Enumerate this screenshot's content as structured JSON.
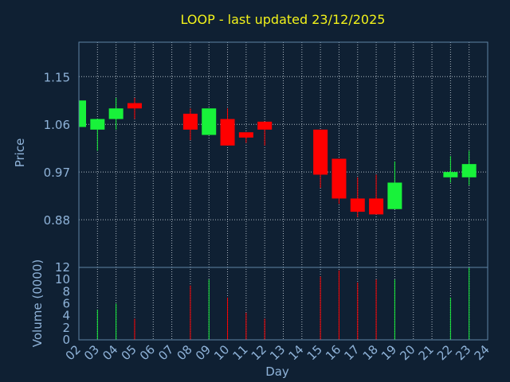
{
  "chart_data": {
    "type": "candlestick",
    "title": "LOOP - last updated 23/12/2025",
    "xlabel": "Day",
    "ylabel_price": "Price",
    "ylabel_volume": "Volume (0000)",
    "x_ticks": [
      "02",
      "03",
      "04",
      "05",
      "06",
      "07",
      "08",
      "09",
      "10",
      "11",
      "12",
      "13",
      "14",
      "15",
      "16",
      "17",
      "18",
      "19",
      "20",
      "21",
      "22",
      "23",
      "24"
    ],
    "price_ticks": [
      "1.15",
      "1.06",
      "0.97",
      "0.88"
    ],
    "price_tick_values": [
      1.15,
      1.06,
      0.97,
      0.88
    ],
    "price_ylim": [
      0.79,
      1.215
    ],
    "volume_ticks": [
      "0",
      "2",
      "4",
      "6",
      "8",
      "10",
      "12"
    ],
    "volume_tick_values": [
      0,
      2,
      4,
      6,
      8,
      10,
      12
    ],
    "volume_ylim": [
      0,
      12
    ],
    "grid": true,
    "colors": {
      "background": "#0f2033",
      "frame": "#5f84a6",
      "grid": "#c9d3dc",
      "title": "#f2f21a",
      "axis_text": "#8fb3d9",
      "up": "#18f23a",
      "down": "#ff0000"
    },
    "candles": [
      {
        "day": 2,
        "open": 1.055,
        "close": 1.105,
        "high": 1.105,
        "low": 1.055,
        "volume": 0
      },
      {
        "day": 3,
        "open": 1.05,
        "close": 1.07,
        "high": 1.07,
        "low": 1.01,
        "volume": 5
      },
      {
        "day": 4,
        "open": 1.07,
        "close": 1.09,
        "high": 1.11,
        "low": 1.05,
        "volume": 6
      },
      {
        "day": 5,
        "open": 1.1,
        "close": 1.09,
        "high": 1.11,
        "low": 1.07,
        "volume": 3.5
      },
      {
        "day": 8,
        "open": 1.08,
        "close": 1.05,
        "high": 1.09,
        "low": 1.03,
        "volume": 9
      },
      {
        "day": 9,
        "open": 1.04,
        "close": 1.09,
        "high": 1.09,
        "low": 1.04,
        "volume": 10
      },
      {
        "day": 10,
        "open": 1.07,
        "close": 1.02,
        "high": 1.09,
        "low": 1.02,
        "volume": 7
      },
      {
        "day": 11,
        "open": 1.045,
        "close": 1.035,
        "high": 1.045,
        "low": 1.025,
        "volume": 4.5
      },
      {
        "day": 12,
        "open": 1.065,
        "close": 1.05,
        "high": 1.065,
        "low": 1.02,
        "volume": 3.5
      },
      {
        "day": 15,
        "open": 1.05,
        "close": 0.965,
        "high": 1.05,
        "low": 0.94,
        "volume": 10.5
      },
      {
        "day": 16,
        "open": 0.995,
        "close": 0.92,
        "high": 0.995,
        "low": 0.91,
        "volume": 11.5
      },
      {
        "day": 17,
        "open": 0.92,
        "close": 0.895,
        "high": 0.96,
        "low": 0.885,
        "volume": 9.5
      },
      {
        "day": 18,
        "open": 0.92,
        "close": 0.89,
        "high": 0.965,
        "low": 0.89,
        "volume": 10
      },
      {
        "day": 19,
        "open": 0.9,
        "close": 0.95,
        "high": 0.99,
        "low": 0.9,
        "volume": 10
      },
      {
        "day": 22,
        "open": 0.96,
        "close": 0.97,
        "high": 1.0,
        "low": 0.95,
        "volume": 7
      },
      {
        "day": 23,
        "open": 0.96,
        "close": 0.985,
        "high": 1.01,
        "low": 0.945,
        "volume": 12
      }
    ]
  }
}
